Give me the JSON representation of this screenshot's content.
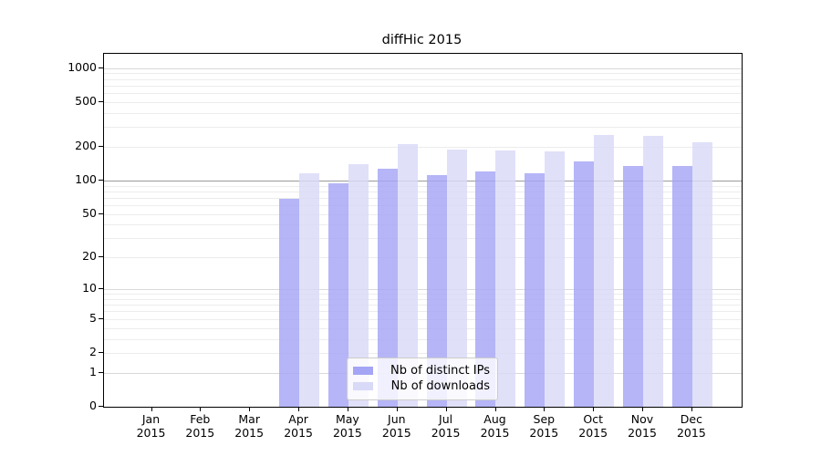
{
  "figure": {
    "background": "#ffffff",
    "axis_color": "#000000"
  },
  "chart_data": {
    "type": "bar",
    "title": "diffHic 2015",
    "xlabel": "",
    "ylabel": "",
    "yscale": "log1p",
    "ylim": [
      0,
      1350
    ],
    "categories": [
      "Jan 2015",
      "Feb 2015",
      "Mar 2015",
      "Apr 2015",
      "May 2015",
      "Jun 2015",
      "Jul 2015",
      "Aug 2015",
      "Sep 2015",
      "Oct 2015",
      "Nov 2015",
      "Dec 2015"
    ],
    "series": [
      {
        "name": "Nb of distinct IPs",
        "color": "#a5a5f5",
        "values": [
          0,
          0,
          0,
          68,
          95,
          127,
          112,
          121,
          117,
          148,
          134,
          134
        ]
      },
      {
        "name": "Nb of downloads",
        "color": "#d9d9f8",
        "values": [
          0,
          0,
          0,
          116,
          139,
          210,
          190,
          186,
          183,
          254,
          251,
          219
        ]
      }
    ],
    "yticks": [
      0,
      1,
      2,
      5,
      10,
      20,
      50,
      100,
      200,
      500,
      1000
    ],
    "grid": {
      "on": true,
      "minor_color": "#ececec",
      "major_color": "#d9d9d9",
      "emphasis_value": 100,
      "emphasis_color": "#9c9c9c"
    },
    "legend": {
      "position": "lower center",
      "entries": [
        "Nb of distinct IPs",
        "Nb of downloads"
      ]
    }
  }
}
